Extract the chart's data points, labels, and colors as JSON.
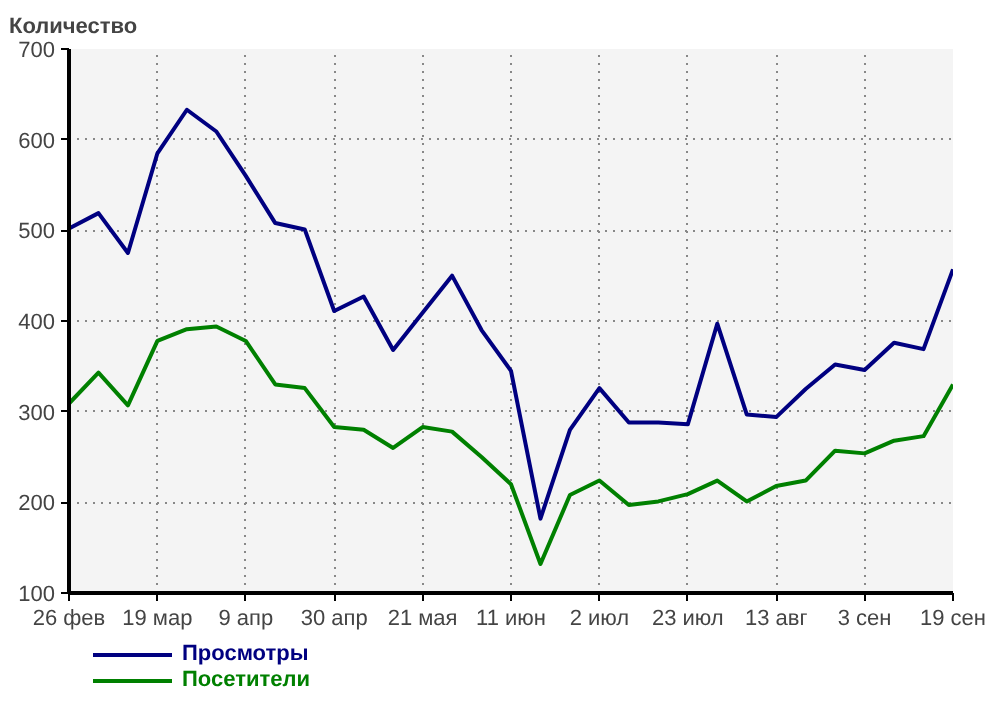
{
  "chart_data": {
    "type": "line",
    "ylabel": "Количество",
    "categories": [
      "26 фев",
      null,
      null,
      "19 мар",
      null,
      null,
      "9 апр",
      null,
      null,
      "30 апр",
      null,
      null,
      "21 мая",
      null,
      null,
      "11 июн",
      null,
      null,
      "2 июл",
      null,
      null,
      "23 июл",
      null,
      null,
      "13 авг",
      null,
      null,
      "3 сен",
      null,
      null,
      "19 сен"
    ],
    "series": [
      {
        "name": "Просмотры",
        "color": "#000080",
        "values": [
          502,
          519,
          475,
          585,
          633,
          609,
          560,
          508,
          501,
          411,
          427,
          368,
          409,
          450,
          390,
          345,
          182,
          280,
          326,
          288,
          288,
          286,
          397,
          297,
          294,
          325,
          352,
          346,
          376,
          369,
          457
        ]
      },
      {
        "name": "Посетители",
        "color": "#008000",
        "values": [
          309,
          343,
          307,
          378,
          391,
          394,
          378,
          330,
          326,
          283,
          280,
          260,
          283,
          278,
          250,
          220,
          132,
          208,
          224,
          197,
          201,
          209,
          224,
          201,
          218,
          224,
          257,
          254,
          268,
          273,
          330
        ]
      }
    ],
    "ylim": [
      100,
      700
    ],
    "yticks": [
      100,
      200,
      300,
      400,
      500,
      600,
      700
    ],
    "grid": true,
    "legend": "bottom",
    "marker": "none",
    "line_style": "solid"
  }
}
